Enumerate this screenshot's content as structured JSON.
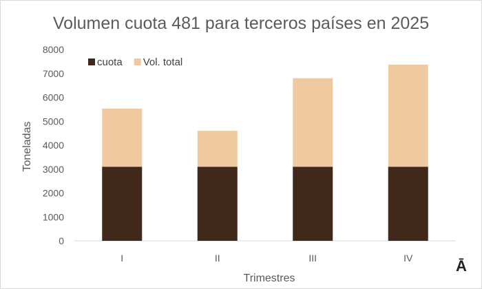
{
  "chart_data": {
    "type": "bar",
    "stacked": true,
    "title": "Volumen cuota 481 para terceros países en 2025",
    "xlabel": "Trimestres",
    "ylabel": "Toneladas",
    "categories": [
      "I",
      "II",
      "III",
      "IV"
    ],
    "ylim": [
      0,
      8000
    ],
    "yticks": [
      0,
      1000,
      2000,
      3000,
      4000,
      5000,
      6000,
      7000,
      8000
    ],
    "grid": false,
    "legend_position": "top-left",
    "series": [
      {
        "name": "cuota",
        "color": "#40291a",
        "values": [
          3100,
          3100,
          3100,
          3100
        ]
      },
      {
        "name": "Vol. total",
        "color": "#f0c9a1",
        "values": [
          2430,
          1500,
          3700,
          4270
        ]
      }
    ]
  },
  "corner_mark": "Ā"
}
